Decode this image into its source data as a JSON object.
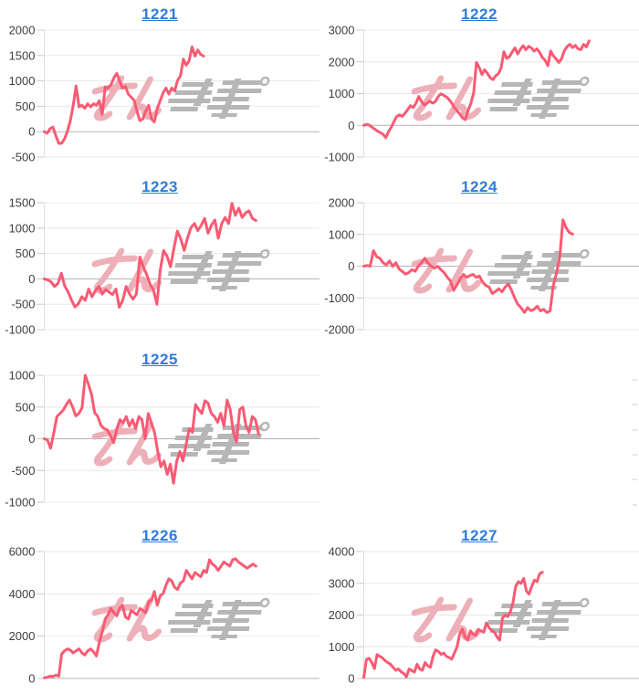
{
  "page": {
    "background": "#ffffff"
  },
  "style": {
    "line_color": "#fa5a73",
    "grid_color": "#e8e8e8",
    "zero_line_color": "#b3b3b3",
    "axis_line_color": "#dedede",
    "tick_color": "#c8c8c8",
    "label_color": "#404040",
    "title_color": "#2e7cd9",
    "fragment_color": "#dcdcdc"
  },
  "watermark": {
    "text": "みんレポ",
    "text_pink": "みん",
    "text_gray": "レポ",
    "pink_color": "#eeb0b8",
    "gray_color": "#b6b6b6"
  },
  "empty_cell": {
    "edge_fragment_count": 6
  },
  "chart_data": [
    {
      "type": "line",
      "title": "1221",
      "slot": 0,
      "y_ticks": [
        2000,
        1500,
        1000,
        500,
        0,
        -500
      ],
      "ymax": 2000,
      "ymin": -500,
      "x_frac": 0.58,
      "grid": true,
      "xlabel": "",
      "ylabel": "",
      "values": [
        0,
        -30,
        60,
        90,
        -80,
        -230,
        -230,
        -140,
        10,
        220,
        520,
        900,
        490,
        520,
        460,
        550,
        490,
        550,
        520,
        610,
        340,
        880,
        860,
        920,
        1060,
        1150,
        1000,
        860,
        890,
        740,
        680,
        620,
        400,
        220,
        250,
        400,
        520,
        250,
        190,
        460,
        610,
        760,
        860,
        740,
        860,
        800,
        1010,
        1100,
        1430,
        1310,
        1400,
        1670,
        1490,
        1610,
        1520,
        1490
      ]
    },
    {
      "type": "line",
      "title": "1222",
      "slot": 1,
      "y_ticks": [
        3000,
        2000,
        1000,
        0,
        -1000
      ],
      "ymax": 3000,
      "ymin": -1000,
      "x_frac": 0.82,
      "grid": true,
      "xlabel": "",
      "ylabel": "",
      "values": [
        0,
        30,
        10,
        -60,
        -120,
        -180,
        -230,
        -280,
        -390,
        -200,
        -60,
        120,
        280,
        330,
        280,
        380,
        500,
        620,
        560,
        700,
        910,
        750,
        640,
        700,
        760,
        700,
        740,
        900,
        990,
        950,
        900,
        820,
        700,
        560,
        450,
        350,
        230,
        180,
        480,
        700,
        1030,
        1980,
        1830,
        1600,
        1750,
        1640,
        1500,
        1440,
        1560,
        1630,
        1810,
        2320,
        2110,
        2160,
        2310,
        2440,
        2250,
        2400,
        2510,
        2380,
        2490,
        2440,
        2340,
        2410,
        2300,
        2140,
        2050,
        1880,
        2340,
        2190,
        2090,
        1980,
        2100,
        2350,
        2480,
        2550,
        2450,
        2520,
        2410,
        2380,
        2550,
        2470,
        2660
      ]
    },
    {
      "type": "line",
      "title": "1223",
      "slot": 2,
      "y_ticks": [
        1500,
        1000,
        500,
        0,
        -500,
        -1000
      ],
      "ymax": 1500,
      "ymin": -1000,
      "x_frac": 0.77,
      "grid": true,
      "xlabel": "",
      "ylabel": "",
      "values": [
        0,
        -20,
        -60,
        -150,
        -90,
        110,
        -140,
        -260,
        -420,
        -550,
        -490,
        -350,
        -420,
        -200,
        -350,
        -230,
        -150,
        -300,
        -210,
        -260,
        -310,
        -200,
        -560,
        -420,
        -150,
        -300,
        -400,
        -300,
        430,
        240,
        90,
        -110,
        -220,
        -500,
        180,
        560,
        440,
        240,
        610,
        940,
        790,
        560,
        810,
        1010,
        1090,
        950,
        1060,
        1190,
        900,
        1060,
        1160,
        800,
        1090,
        1210,
        1090,
        1490,
        1250,
        1390,
        1210,
        1300,
        1340,
        1190,
        1150
      ]
    },
    {
      "type": "line",
      "title": "1224",
      "slot": 3,
      "y_ticks": [
        2000,
        1000,
        0,
        -1000,
        -2000
      ],
      "ymax": 2000,
      "ymin": -2000,
      "x_frac": 0.76,
      "grid": true,
      "xlabel": "",
      "ylabel": "",
      "values": [
        0,
        20,
        0,
        490,
        300,
        250,
        110,
        40,
        160,
        0,
        110,
        -90,
        -160,
        -250,
        -200,
        -110,
        -160,
        0,
        110,
        250,
        90,
        0,
        -60,
        0,
        -110,
        -200,
        -350,
        -460,
        -760,
        -590,
        -400,
        -260,
        -350,
        -300,
        -260,
        -350,
        -310,
        -500,
        -610,
        -660,
        -860,
        -800,
        -710,
        -810,
        -660,
        -560,
        -760,
        -1010,
        -1210,
        -1310,
        -1460,
        -1310,
        -1400,
        -1360,
        -1260,
        -1410,
        -1360,
        -1460,
        -1410,
        -610,
        -210,
        290,
        1460,
        1210,
        1060,
        1010
      ]
    },
    {
      "type": "line",
      "title": "1225",
      "slot": 4,
      "y_ticks": [
        1000,
        500,
        0,
        -500,
        -1000
      ],
      "ymax": 1000,
      "ymin": -1000,
      "x_frac": 0.78,
      "grid": true,
      "xlabel": "",
      "ylabel": "",
      "values": [
        0,
        -20,
        -150,
        90,
        350,
        400,
        450,
        540,
        610,
        500,
        360,
        400,
        490,
        1000,
        860,
        700,
        410,
        350,
        210,
        160,
        140,
        50,
        -60,
        150,
        300,
        250,
        350,
        200,
        300,
        160,
        350,
        300,
        0,
        400,
        250,
        100,
        -200,
        -440,
        -350,
        -560,
        -400,
        -700,
        -360,
        -200,
        -350,
        -90,
        160,
        100,
        540,
        460,
        400,
        600,
        560,
        400,
        350,
        260,
        400,
        200,
        610,
        460,
        100,
        -50,
        460,
        500,
        200,
        100,
        350,
        300,
        70
      ]
    },
    {
      "type": "line",
      "title": "1226",
      "slot": 6,
      "y_ticks": [
        6000,
        4000,
        2000,
        0
      ],
      "ymax": 6000,
      "ymin": 0,
      "x_frac": 0.77,
      "grid": true,
      "xlabel": "",
      "ylabel": "",
      "values": [
        30,
        60,
        110,
        90,
        160,
        110,
        1150,
        1310,
        1400,
        1340,
        1210,
        1310,
        1400,
        1210,
        1110,
        1310,
        1400,
        1260,
        1060,
        1710,
        2210,
        2810,
        3010,
        3310,
        3110,
        2960,
        3310,
        3460,
        2910,
        2810,
        3210,
        3110,
        3010,
        3310,
        3210,
        3110,
        3610,
        3710,
        4110,
        3460,
        3910,
        4010,
        4410,
        4710,
        4610,
        4310,
        4210,
        4510,
        4610,
        5110,
        4910,
        4710,
        5010,
        4910,
        4810,
        5110,
        5010,
        5610,
        5410,
        5310,
        5110,
        5310,
        5510,
        5410,
        5310,
        5610,
        5660,
        5510,
        5410,
        5310,
        5210,
        5310,
        5410,
        5310
      ]
    },
    {
      "type": "line",
      "title": "1227",
      "slot": 7,
      "y_ticks": [
        4000,
        3000,
        2000,
        1000,
        0
      ],
      "ymax": 4000,
      "ymin": 0,
      "x_frac": 0.65,
      "grid": true,
      "xlabel": "",
      "ylabel": "",
      "values": [
        30,
        600,
        640,
        500,
        310,
        750,
        700,
        650,
        560,
        500,
        450,
        350,
        260,
        300,
        210,
        160,
        50,
        300,
        250,
        200,
        450,
        300,
        260,
        500,
        400,
        350,
        700,
        900,
        850,
        760,
        800,
        700,
        660,
        610,
        800,
        1000,
        1400,
        1550,
        1300,
        1210,
        1500,
        1400,
        1360,
        1550,
        1500,
        1460,
        1750,
        1600,
        1510,
        1460,
        1310,
        1210,
        1900,
        2000,
        1950,
        2100,
        2400,
        2900,
        3050,
        3000,
        3150,
        2760,
        2660,
        2900,
        3100,
        3050,
        3300,
        3350
      ]
    }
  ]
}
